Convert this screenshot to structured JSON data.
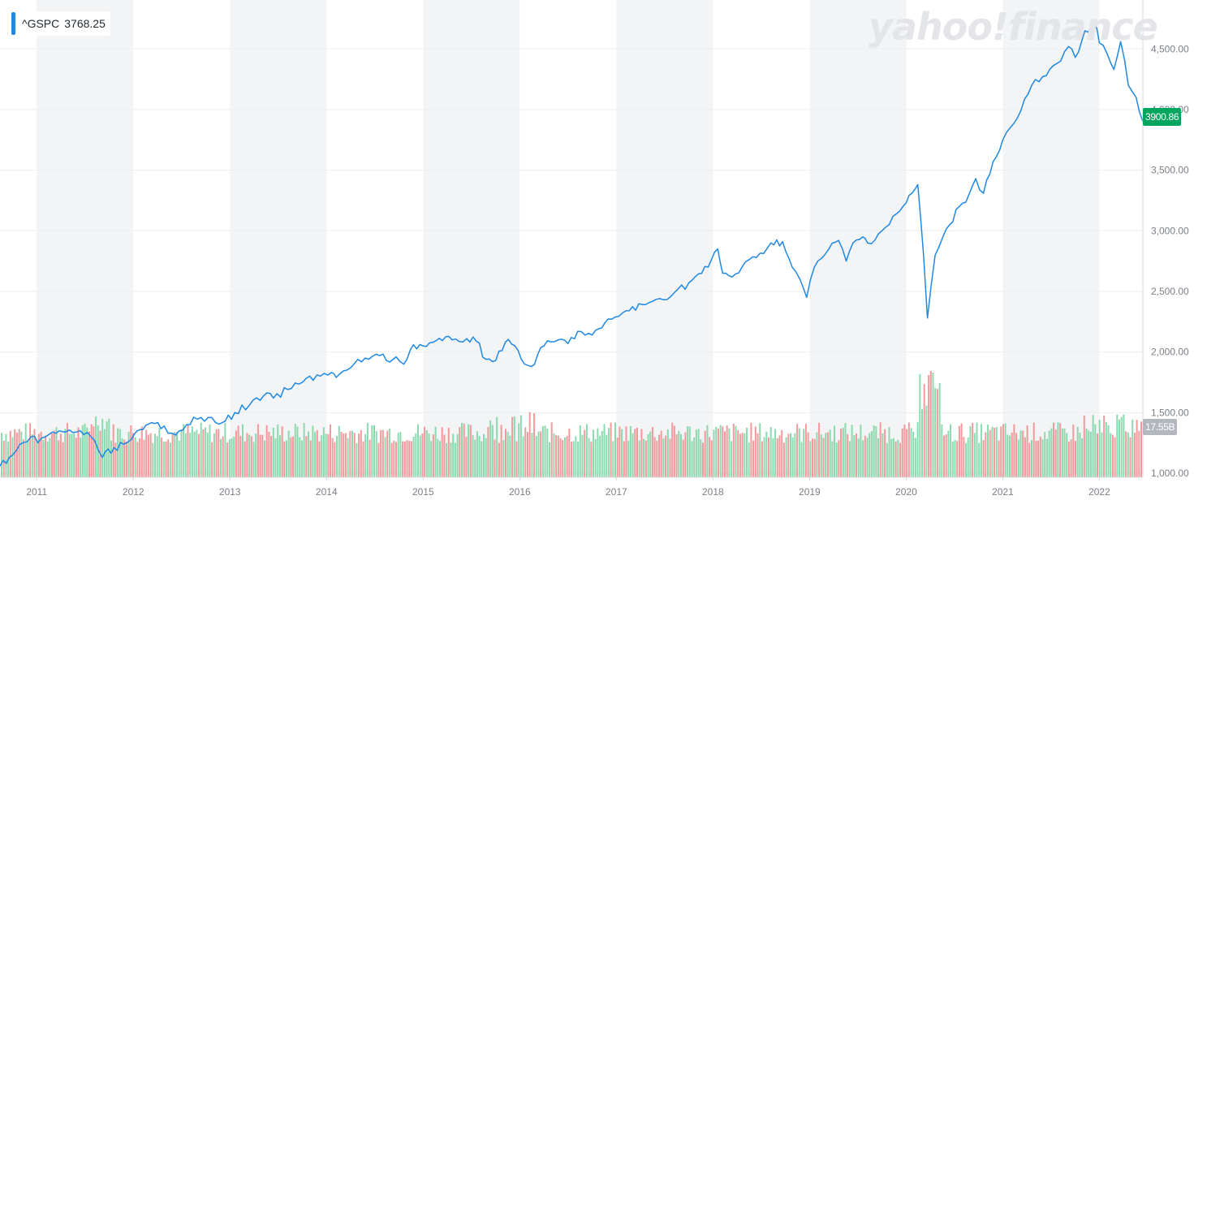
{
  "legend": {
    "symbol": "^GSPC",
    "value": "3768.25"
  },
  "watermark": "yahoo!finance",
  "price_tag": "3900.86",
  "volume_tag": "17.55B",
  "colors": {
    "line": "#1e88e5",
    "band": "#f3f4f5",
    "vol_up": "#7ad3a2",
    "vol_down": "#f0888b",
    "price_tag": "#00a55e",
    "volume_tag": "#b3b8bf",
    "grid": "#eceef0",
    "axis_text": "#7a7f85"
  },
  "chart_data": {
    "type": "line",
    "series": [
      {
        "name": "^GSPC",
        "x": [
          2010.62,
          2010.75,
          2010.9,
          2011.05,
          2011.2,
          2011.3,
          2011.45,
          2011.6,
          2011.68,
          2011.8,
          2011.9,
          2011.98,
          2012.1,
          2012.22,
          2012.32,
          2012.4,
          2012.55,
          2012.7,
          2012.85,
          2012.95,
          2013.05,
          2013.2,
          2013.35,
          2013.45,
          2013.6,
          2013.75,
          2013.9,
          2014.05,
          2014.1,
          2014.25,
          2014.4,
          2014.55,
          2014.62,
          2014.72,
          2014.8,
          2014.9,
          2015.0,
          2015.1,
          2015.3,
          2015.45,
          2015.55,
          2015.65,
          2015.72,
          2015.85,
          2015.95,
          2016.05,
          2016.12,
          2016.25,
          2016.4,
          2016.5,
          2016.6,
          2016.75,
          2016.85,
          2016.95,
          2017.1,
          2017.3,
          2017.45,
          2017.6,
          2017.75,
          2017.95,
          2018.05,
          2018.1,
          2018.2,
          2018.3,
          2018.45,
          2018.6,
          2018.72,
          2018.82,
          2018.9,
          2018.97,
          2019.05,
          2019.2,
          2019.3,
          2019.38,
          2019.45,
          2019.55,
          2019.6,
          2019.75,
          2019.9,
          2020.0,
          2020.12,
          2020.18,
          2020.22,
          2020.3,
          2020.45,
          2020.55,
          2020.65,
          2020.72,
          2020.8,
          2020.9,
          2021.0,
          2021.15,
          2021.3,
          2021.45,
          2021.6,
          2021.68,
          2021.75,
          2021.85,
          2021.95,
          2022.0,
          2022.08,
          2022.15,
          2022.22,
          2022.3,
          2022.38,
          2022.45
        ],
        "values": [
          1060,
          1150,
          1260,
          1290,
          1330,
          1340,
          1350,
          1270,
          1130,
          1210,
          1240,
          1280,
          1360,
          1410,
          1390,
          1330,
          1400,
          1460,
          1420,
          1430,
          1500,
          1560,
          1640,
          1620,
          1690,
          1750,
          1810,
          1830,
          1790,
          1870,
          1950,
          1970,
          1930,
          1960,
          1900,
          2060,
          2050,
          2080,
          2100,
          2110,
          2090,
          1940,
          1920,
          2080,
          2050,
          1900,
          1880,
          2050,
          2100,
          2070,
          2170,
          2140,
          2200,
          2270,
          2340,
          2390,
          2440,
          2490,
          2570,
          2700,
          2850,
          2650,
          2620,
          2700,
          2780,
          2900,
          2910,
          2700,
          2600,
          2450,
          2700,
          2850,
          2920,
          2750,
          2900,
          2950,
          2900,
          3000,
          3140,
          3230,
          3380,
          2800,
          2280,
          2800,
          3050,
          3200,
          3300,
          3430,
          3310,
          3570,
          3750,
          3930,
          4200,
          4280,
          4400,
          4520,
          4430,
          4650,
          4710,
          4550,
          4460,
          4330,
          4560,
          4200,
          4100,
          3900
        ]
      }
    ],
    "volume_series": {
      "name": "Volume",
      "unit": "B",
      "current": "17.55B"
    },
    "x_tick_labels": [
      "2011",
      "2012",
      "2013",
      "2014",
      "2015",
      "2016",
      "2017",
      "2018",
      "2019",
      "2020",
      "2021",
      "2022"
    ],
    "y_tick_labels": [
      "1,000.00",
      "1,500.00",
      "2,000.00",
      "2,500.00",
      "3,000.00",
      "3,500.00",
      "4,000.00",
      "4,500.00"
    ],
    "y_ticks": [
      1000,
      1500,
      2000,
      2500,
      3000,
      3500,
      4000,
      4500
    ],
    "xlim": [
      2010.62,
      2022.45
    ],
    "ylim": [
      1000,
      4850
    ],
    "xlabel": "",
    "ylabel": "",
    "grid": true,
    "legend_position": "top-left"
  }
}
